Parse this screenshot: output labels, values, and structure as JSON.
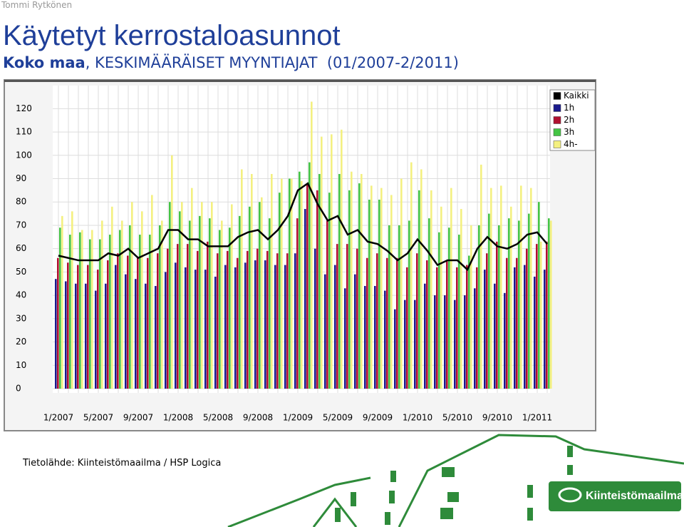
{
  "header": {
    "author": "Tommi Rytkönen",
    "title": "Käytetyt kerrostaloasunnot",
    "subtitle_bold": "Koko maa",
    "subtitle": ", KESKIMÄÄRÄISET MYYNTIAJAT  (01/2007-2/2011)"
  },
  "chart_data": {
    "type": "bar",
    "grid": true,
    "legend": "top-right",
    "categories": [
      "1/2007",
      null,
      null,
      null,
      "5/2007",
      null,
      null,
      null,
      "9/2007",
      null,
      null,
      null,
      "1/2008",
      null,
      null,
      null,
      "5/2008",
      null,
      null,
      null,
      "9/2008",
      null,
      null,
      null,
      "1/2009",
      null,
      null,
      null,
      "5/2009",
      null,
      null,
      null,
      "9/2009",
      null,
      null,
      null,
      "1/2010",
      null,
      null,
      null,
      "5/2010",
      null,
      null,
      null,
      "9/2010",
      null,
      null,
      null,
      "1/2011",
      null
    ],
    "ylim": [
      0,
      125
    ],
    "yticks": [
      0,
      10,
      20,
      30,
      40,
      50,
      60,
      70,
      80,
      90,
      100,
      110,
      120
    ],
    "series": [
      {
        "name": "Kaikki",
        "type": "line",
        "color": "#000000",
        "values": [
          57,
          56,
          55,
          55,
          55,
          58,
          57,
          60,
          56,
          58,
          60,
          68,
          68,
          64,
          64,
          61,
          61,
          61,
          65,
          67,
          68,
          64,
          68,
          74,
          85,
          88,
          79,
          72,
          74,
          66,
          68,
          63,
          62,
          59,
          55,
          58,
          64,
          59,
          53,
          55,
          55,
          51,
          60,
          65,
          61,
          60,
          62,
          66,
          67,
          62
        ]
      },
      {
        "name": "1h",
        "color": "#1a1a8c",
        "values": [
          47,
          46,
          45,
          45,
          42,
          45,
          53,
          49,
          47,
          45,
          44,
          50,
          54,
          52,
          51,
          51,
          48,
          53,
          52,
          54,
          55,
          55,
          53,
          53,
          58,
          77,
          60,
          49,
          53,
          43,
          49,
          44,
          44,
          42,
          34,
          38,
          38,
          45,
          40,
          40,
          38,
          40,
          43,
          51,
          45,
          41,
          52,
          53,
          48,
          51
        ]
      },
      {
        "name": "2h",
        "color": "#b01030",
        "values": [
          56,
          54,
          53,
          53,
          51,
          55,
          58,
          57,
          56,
          56,
          58,
          60,
          62,
          62,
          59,
          63,
          58,
          59,
          56,
          59,
          60,
          59,
          58,
          58,
          73,
          88,
          85,
          72,
          62,
          62,
          60,
          56,
          58,
          56,
          56,
          52,
          58,
          55,
          52,
          55,
          52,
          53,
          52,
          58,
          63,
          56,
          56,
          60,
          62,
          63
        ]
      },
      {
        "name": "3h",
        "color": "#44c444",
        "values": [
          69,
          66,
          67,
          64,
          64,
          66,
          68,
          70,
          66,
          66,
          70,
          80,
          76,
          72,
          74,
          73,
          68,
          69,
          74,
          78,
          80,
          73,
          84,
          90,
          93,
          97,
          92,
          84,
          92,
          85,
          88,
          81,
          81,
          70,
          70,
          72,
          85,
          73,
          67,
          69,
          66,
          57,
          70,
          75,
          70,
          73,
          72,
          75,
          80,
          73
        ]
      },
      {
        "name": "4h-",
        "color": "#f4f080",
        "values": [
          74,
          76,
          68,
          68,
          72,
          78,
          72,
          80,
          76,
          83,
          72,
          100,
          80,
          86,
          80,
          80,
          72,
          79,
          94,
          92,
          82,
          92,
          90,
          90,
          89,
          123,
          108,
          109,
          111,
          93,
          92,
          87,
          86,
          83,
          90,
          97,
          94,
          85,
          78,
          86,
          77,
          70,
          96,
          86,
          87,
          78,
          87,
          86,
          63,
          72
        ]
      }
    ]
  },
  "footer": {
    "source": "Tietolähde: Kiinteistömaailma / HSP Logica",
    "logo": "Kiinteistömaailma"
  }
}
